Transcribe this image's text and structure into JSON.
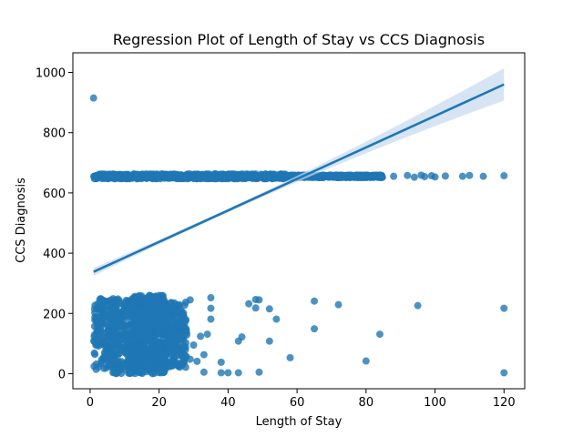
{
  "chart_data": {
    "type": "scatter",
    "title": "Regression Plot of Length of Stay vs CCS Diagnosis",
    "xlabel": "Length of Stay",
    "ylabel": "CCS Diagnosis",
    "xlim": [
      -5,
      126
    ],
    "ylim": [
      -50,
      1065
    ],
    "x_ticks": [
      0,
      20,
      40,
      60,
      80,
      100,
      120
    ],
    "y_ticks": [
      0,
      200,
      400,
      600,
      800,
      1000
    ],
    "grid": false,
    "colors": {
      "points": "#1f77b4",
      "line": "#1f77b4",
      "band": "#c6d9ee"
    },
    "regression": {
      "x": [
        1,
        120
      ],
      "y": [
        338,
        960
      ],
      "ci_upper_end": 1015,
      "ci_lower_end": 908
    },
    "outliers": [
      {
        "x": 1,
        "y": 915
      },
      {
        "x": 120,
        "y": 657
      },
      {
        "x": 120,
        "y": 217
      },
      {
        "x": 120,
        "y": 3
      },
      {
        "x": 95,
        "y": 226
      },
      {
        "x": 84,
        "y": 131
      },
      {
        "x": 80,
        "y": 42
      },
      {
        "x": 72,
        "y": 229
      },
      {
        "x": 65,
        "y": 149
      },
      {
        "x": 65,
        "y": 241
      },
      {
        "x": 58,
        "y": 53
      },
      {
        "x": 54,
        "y": 181
      },
      {
        "x": 52,
        "y": 108
      },
      {
        "x": 52,
        "y": 215
      },
      {
        "x": 49,
        "y": 245
      },
      {
        "x": 48,
        "y": 218
      },
      {
        "x": 48,
        "y": 246
      },
      {
        "x": 46,
        "y": 232
      },
      {
        "x": 49,
        "y": 5
      },
      {
        "x": 44,
        "y": 122
      },
      {
        "x": 43,
        "y": 108
      },
      {
        "x": 43,
        "y": 3
      },
      {
        "x": 40,
        "y": 3
      },
      {
        "x": 38,
        "y": 38
      },
      {
        "x": 38,
        "y": 3
      },
      {
        "x": 35,
        "y": 252
      },
      {
        "x": 35,
        "y": 217
      },
      {
        "x": 35,
        "y": 181
      },
      {
        "x": 34,
        "y": 131
      },
      {
        "x": 33,
        "y": 63
      },
      {
        "x": 33,
        "y": 5
      },
      {
        "x": 32,
        "y": 124
      },
      {
        "x": 31,
        "y": 41
      },
      {
        "x": 30,
        "y": 95
      },
      {
        "x": 29,
        "y": 245
      },
      {
        "x": 29,
        "y": 48
      }
    ],
    "dense_bands": [
      {
        "y": 655,
        "x_range": [
          1,
          57
        ],
        "y_spread": 8
      },
      {
        "y": 655,
        "x_range": [
          57,
          85
        ],
        "y_spread": 4
      },
      {
        "y": 125,
        "x_range": [
          1,
          12
        ],
        "y_spread": 125
      },
      {
        "y": 190,
        "x_range": [
          12,
          22
        ],
        "y_spread": 70
      },
      {
        "y": 55,
        "x_range": [
          12,
          22
        ],
        "y_spread": 55
      },
      {
        "y": 130,
        "x_range": [
          22,
          28
        ],
        "y_spread": 110
      }
    ],
    "sparse_high": [
      {
        "x": 88,
        "y": 655
      },
      {
        "x": 92,
        "y": 658
      },
      {
        "x": 94,
        "y": 652
      },
      {
        "x": 96,
        "y": 659
      },
      {
        "x": 97,
        "y": 654
      },
      {
        "x": 99,
        "y": 657
      },
      {
        "x": 100,
        "y": 653
      },
      {
        "x": 103,
        "y": 656
      },
      {
        "x": 108,
        "y": 655
      },
      {
        "x": 110,
        "y": 658
      },
      {
        "x": 114,
        "y": 655
      }
    ]
  }
}
